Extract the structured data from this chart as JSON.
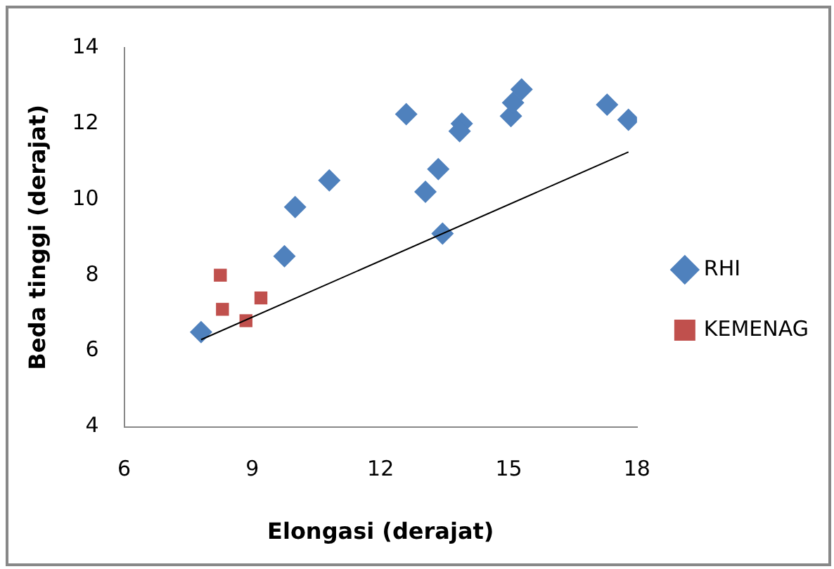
{
  "chart_data": {
    "type": "scatter",
    "xlabel": "Elongasi (derajat)",
    "ylabel": "Beda tinggi (derajat)",
    "xlim": [
      6,
      18
    ],
    "xticks": [
      6,
      9,
      12,
      15,
      18
    ],
    "ylim": [
      4,
      14
    ],
    "yticks": [
      4,
      6,
      8,
      10,
      12,
      14
    ],
    "grid": false,
    "legend": "right",
    "series": [
      {
        "name": "RHI",
        "color": "#4f81bd",
        "marker": "diamond",
        "x": [
          7.8,
          9.75,
          10,
          10.8,
          12.6,
          13.05,
          13.35,
          13.45,
          13.9,
          13.85,
          15.05,
          15.1,
          15.3,
          17.3,
          17.8
        ],
        "values": [
          6.5,
          8.5,
          9.8,
          10.5,
          12.25,
          10.2,
          10.8,
          9.1,
          12,
          11.8,
          12.2,
          12.55,
          12.9,
          12.5,
          12.1
        ]
      },
      {
        "name": "KEMENAG",
        "color": "#c0504d",
        "marker": "square",
        "x": [
          8.25,
          8.3,
          8.85,
          9.2
        ],
        "values": [
          8,
          7.1,
          6.8,
          7.4
        ]
      },
      {
        "type": "line",
        "color": "#000000",
        "marker": "none",
        "x": [
          7.8,
          17.8
        ],
        "values": [
          6.3,
          11.25
        ]
      }
    ]
  }
}
